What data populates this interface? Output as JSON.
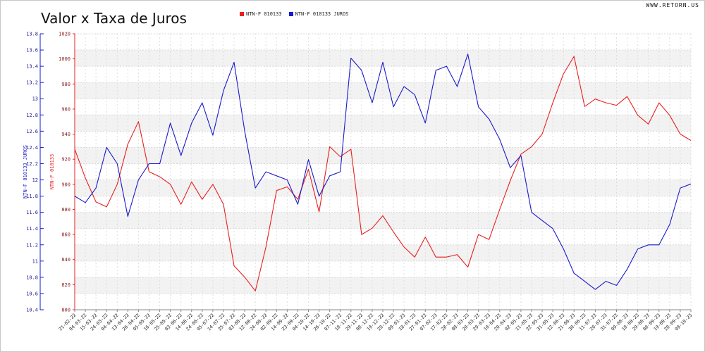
{
  "header": {
    "title": "Valor x Taxa de Juros",
    "watermark": "WWW.RETORN.US"
  },
  "colors": {
    "red": "#e82020",
    "blue": "#1a1acc"
  },
  "chart_data": {
    "type": "line",
    "title": "Valor x Taxa de Juros",
    "legend_position": "top",
    "grid": true,
    "left_axis": {
      "label": "NTN-F 010133 JUROS",
      "min": 10.4,
      "max": 13.8,
      "ticks": [
        10.4,
        10.6,
        10.8,
        11,
        11.2,
        11.4,
        11.6,
        11.8,
        12,
        12.2,
        12.4,
        12.6,
        12.8,
        13,
        13.2,
        13.4,
        13.6,
        13.8
      ]
    },
    "right_axis": {
      "label": "NTN-F 010133",
      "min": 800,
      "max": 1020,
      "ticks": [
        800,
        820,
        840,
        860,
        880,
        900,
        920,
        940,
        960,
        980,
        1000,
        1020
      ]
    },
    "categories": [
      "21-02-22",
      "04-03-22",
      "15-03-22",
      "24-03-22",
      "04-04-22",
      "13-04-22",
      "26-04-22",
      "05-05-22",
      "16-05-22",
      "25-05-22",
      "03-06-22",
      "14-06-22",
      "24-06-22",
      "05-07-22",
      "14-07-22",
      "25-07-22",
      "03-08-22",
      "12-08-22",
      "24-08-22",
      "02-09-22",
      "14-09-22",
      "23-09-22",
      "04-10-22",
      "14-10-22",
      "26-10-22",
      "07-11-22",
      "18-11-22",
      "29-11-22",
      "08-12-22",
      "19-12-22",
      "28-12-22",
      "09-01-23",
      "18-01-23",
      "27-01-23",
      "07-02-23",
      "17-02-23",
      "28-02-23",
      "09-03-23",
      "20-03-23",
      "29-03-23",
      "10-04-23",
      "20-04-23",
      "02-05-23",
      "11-05-23",
      "22-05-23",
      "31-05-23",
      "12-06-23",
      "21-06-23",
      "30-06-23",
      "11-07-23",
      "20-07-23",
      "31-07-23",
      "09-08-23",
      "18-08-23",
      "29-08-23",
      "08-09-23",
      "19-09-23",
      "28-09-23",
      "09-10-23"
    ],
    "series": [
      {
        "name": "NTN-F 010133",
        "axis": "right",
        "color": "#e82020",
        "values": [
          928,
          905,
          886,
          882,
          900,
          932,
          950,
          910,
          906,
          900,
          884,
          902,
          888,
          900,
          884,
          835,
          826,
          815,
          850,
          895,
          898,
          888,
          912,
          878,
          930,
          922,
          928,
          860,
          865,
          875,
          862,
          850,
          842,
          858,
          842,
          842,
          844,
          834,
          860,
          856,
          880,
          903,
          924,
          930,
          940,
          965,
          988,
          1002,
          962,
          968,
          965,
          963,
          970,
          955,
          948,
          965,
          955,
          940,
          935
        ]
      },
      {
        "name": "NTN-F 010133 JUROS",
        "axis": "left",
        "color": "#1a1acc",
        "values": [
          11.8,
          11.72,
          11.9,
          12.4,
          12.2,
          11.55,
          12.0,
          12.2,
          12.2,
          12.7,
          12.3,
          12.7,
          12.95,
          12.55,
          13.1,
          13.45,
          12.6,
          11.9,
          12.1,
          12.05,
          12.0,
          11.7,
          12.25,
          11.8,
          12.05,
          12.1,
          13.5,
          13.35,
          12.95,
          13.45,
          12.9,
          13.15,
          13.05,
          12.7,
          13.35,
          13.4,
          13.15,
          13.55,
          12.9,
          12.75,
          12.5,
          12.15,
          12.3,
          11.6,
          11.5,
          11.4,
          11.15,
          10.85,
          10.75,
          10.65,
          10.75,
          10.7,
          10.9,
          11.15,
          11.2,
          11.2,
          11.45,
          11.9,
          11.95
        ]
      }
    ]
  }
}
